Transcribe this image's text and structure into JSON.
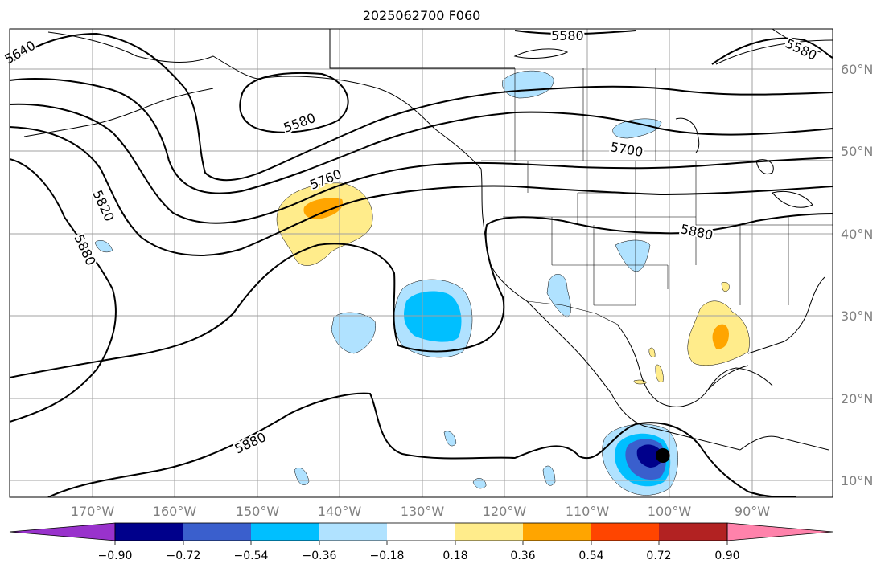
{
  "title": "2025062700 F060",
  "map": {
    "lon_labels": [
      "170°W",
      "160°W",
      "150°W",
      "140°W",
      "130°W",
      "120°W",
      "110°W",
      "100°W",
      "90°W"
    ],
    "lat_labels": [
      "60°N",
      "50°N",
      "40°N",
      "30°N",
      "20°N",
      "10°N"
    ],
    "contour_labels": [
      "5640",
      "5580",
      "5580",
      "5580",
      "5700",
      "5760",
      "5820",
      "5880",
      "5880",
      "5880"
    ]
  },
  "colorbar": {
    "tick_labels": [
      "−0.90",
      "−0.72",
      "−0.54",
      "−0.36",
      "−0.18",
      "0.18",
      "0.36",
      "0.54",
      "0.72",
      "0.90"
    ],
    "colors": [
      "#9932cc",
      "#00008b",
      "#3a5fcd",
      "#00bfff",
      "#b0e2ff",
      "#ffffff",
      "#ffec8b",
      "#ffa500",
      "#ff4500",
      "#b22222",
      "#ff82ab"
    ]
  }
}
